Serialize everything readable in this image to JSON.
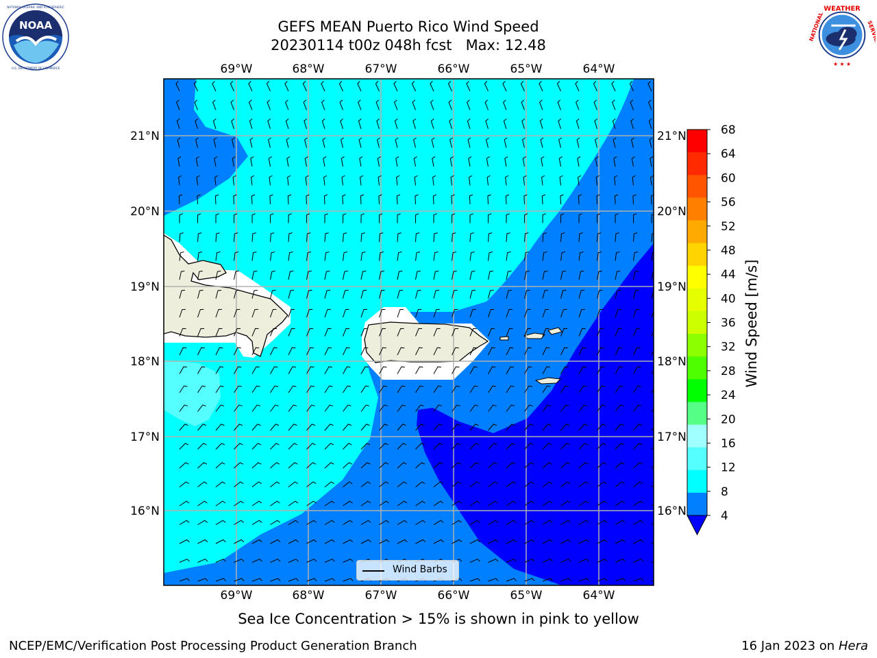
{
  "header": {
    "title_line1": "GEFS MEAN Puerto Rico Wind Speed",
    "title_line2": "20230114 t00z 048h fcst   Max: 12.48"
  },
  "logos": {
    "left": {
      "name": "NOAA",
      "ring_text": "NATIONAL OCEANIC AND ATMOSPHERIC ADMINISTRATION · U.S. DEPARTMENT OF COMMERCE"
    },
    "right": {
      "name": "NATIONAL WEATHER SERVICE"
    }
  },
  "axes": {
    "lon_labels": [
      "69°W",
      "68°W",
      "67°W",
      "66°W",
      "65°W",
      "64°W"
    ],
    "lat_labels": [
      "21°N",
      "20°N",
      "19°N",
      "18°N",
      "17°N",
      "16°N"
    ]
  },
  "colorbar": {
    "label": "Wind Speed [m/s]",
    "ticks": [
      "68",
      "64",
      "60",
      "56",
      "52",
      "48",
      "44",
      "40",
      "36",
      "32",
      "28",
      "24",
      "20",
      "16",
      "12",
      "8",
      "4"
    ],
    "colors": [
      "#ff0000",
      "#ff2a00",
      "#ff5500",
      "#ff8000",
      "#ffaa00",
      "#ffd400",
      "#ffff00",
      "#e6ff00",
      "#ccff00",
      "#8cff00",
      "#4dff00",
      "#00ff00",
      "#55ff85",
      "#a0ffff",
      "#55ffff",
      "#00ffff",
      "#0080ff"
    ],
    "under_color": "#0000ff"
  },
  "map_colors": {
    "band_0_4": "#0000ff",
    "band_4_8": "#0080ff",
    "band_8_12": "#00ffff",
    "band_12_16": "#55ffff",
    "land": "#eeeedc",
    "grid": "#b0b0b0"
  },
  "legend": {
    "label": "Wind Barbs"
  },
  "footnote": "Sea Ice Concentration > 15% is shown in pink to yellow",
  "footer": {
    "left": "NCEP/EMC/Verification Post Processing Product Generation Branch",
    "right_date": "16 Jan 2023 on ",
    "right_machine": "Hera"
  }
}
